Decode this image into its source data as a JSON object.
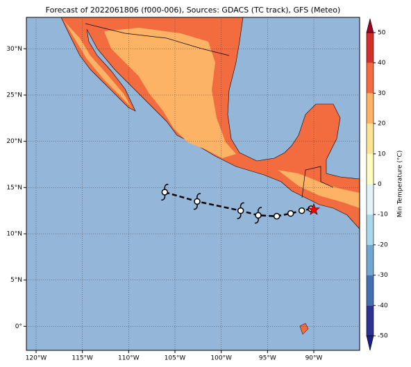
{
  "title": "Forecast of 2022061806 (f000-006), Sources: GDACS (TC track), GFS (Meteo)",
  "map": {
    "xlim": [
      -121.05,
      -85.05
    ],
    "ylim": [
      -2.6,
      33.4
    ],
    "xticks": [
      {
        "value": -120,
        "label": "120°W"
      },
      {
        "value": -115,
        "label": "115°W"
      },
      {
        "value": -110,
        "label": "110°W"
      },
      {
        "value": -105,
        "label": "105°W"
      },
      {
        "value": -100,
        "label": "100°W"
      },
      {
        "value": -95,
        "label": "95°W"
      },
      {
        "value": -90,
        "label": "90°W"
      }
    ],
    "yticks": [
      {
        "value": 0,
        "label": "0°"
      },
      {
        "value": 5,
        "label": "5°N"
      },
      {
        "value": 10,
        "label": "10°N"
      },
      {
        "value": 15,
        "label": "15°N"
      },
      {
        "value": 20,
        "label": "20°N"
      },
      {
        "value": 25,
        "label": "25°N"
      },
      {
        "value": 30,
        "label": "30°N"
      }
    ],
    "grid": true,
    "ocean_color": "#94b6d9"
  },
  "colorbar": {
    "label": "Min Temperature (°C)",
    "ticks": [
      -50,
      -40,
      -30,
      -20,
      -10,
      0,
      10,
      20,
      30,
      40,
      50
    ],
    "colors": [
      "#2d3190",
      "#4472b0",
      "#72a8d0",
      "#aad7e8",
      "#e2f3f7",
      "#fefec0",
      "#fee394",
      "#fdb366",
      "#f26c3f",
      "#d52f27"
    ],
    "under_color": "#1c1f8a",
    "over_color": "#a10026"
  },
  "track": {
    "lon": [
      -106.1,
      -102.6,
      -97.9,
      -96.0,
      -94.0,
      -92.5,
      -91.3,
      -90.3
    ],
    "lat": [
      14.5,
      13.5,
      12.5,
      12.0,
      11.9,
      12.2,
      12.5,
      12.7
    ],
    "symbols": [
      "hurricane",
      "hurricane",
      "hurricane",
      "hurricane",
      "storm",
      "storm",
      "storm",
      "storm"
    ]
  },
  "current_position": {
    "lon": -90.0,
    "lat": 12.6,
    "color": "#ff0000"
  }
}
